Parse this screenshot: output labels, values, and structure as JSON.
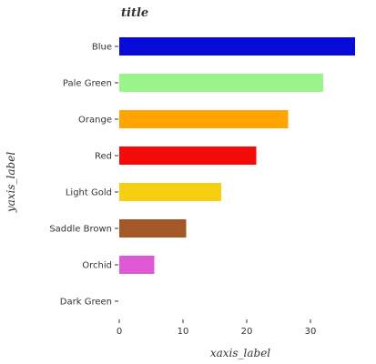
{
  "chart_data": {
    "type": "bar",
    "orientation": "horizontal",
    "title": "title",
    "xlabel": "xaxis_label",
    "ylabel": "yaxis_label",
    "categories": [
      "Blue",
      "Pale Green",
      "Orange",
      "Red",
      "Light Gold",
      "Saddle Brown",
      "Orchid",
      "Dark Green"
    ],
    "values": [
      37,
      32,
      26.5,
      21.5,
      16,
      10.5,
      5.5,
      0
    ],
    "colors": [
      "#0a0ad8",
      "#99f58a",
      "#ffa400",
      "#f50a0a",
      "#f5cf10",
      "#a45727",
      "#df58d4",
      "#006400"
    ],
    "xticks": [
      0,
      10,
      20,
      30
    ],
    "xlim": [
      0,
      38
    ],
    "grid": false,
    "legend": "none"
  }
}
